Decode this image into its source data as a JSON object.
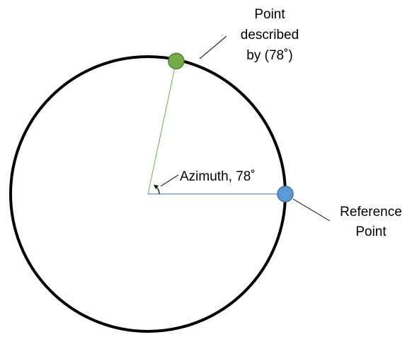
{
  "labels": {
    "point_line1": "Point",
    "point_line2": "described",
    "point_line3": "by (78˚)",
    "azimuth": "Azimuth, 78˚",
    "reference_line1": "Reference",
    "reference_line2": "Point"
  },
  "angle_degrees": 78,
  "colors": {
    "circle": "#000000",
    "described_point": "#70ad47",
    "described_point_stroke": "#507e32",
    "reference_point": "#5b9bd5",
    "reference_point_stroke": "#41719c",
    "azimuth_ray": "#70ad47",
    "reference_ray": "#4472c4",
    "leader": "#000000"
  }
}
